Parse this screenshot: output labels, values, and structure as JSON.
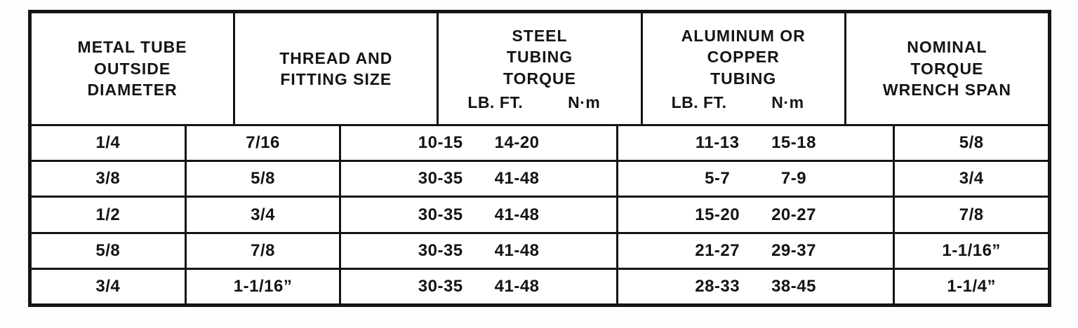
{
  "colors": {
    "background": "#ffffff",
    "border": "#141414",
    "text": "#141414"
  },
  "headers": [
    {
      "title": "METAL TUBE\nOUTSIDE\nDIAMETER"
    },
    {
      "title": "THREAD AND\nFITTING SIZE"
    },
    {
      "title": "STEEL\nTUBING\nTORQUE",
      "units": [
        "LB. FT.",
        "N·m"
      ]
    },
    {
      "title": "ALUMINUM OR\nCOPPER\nTUBING",
      "units": [
        "LB. FT.",
        "N·m"
      ]
    },
    {
      "title": "NOMINAL\nTORQUE\nWRENCH SPAN"
    }
  ],
  "chart_data": {
    "type": "table",
    "columns": [
      "METAL TUBE OUTSIDE DIAMETER",
      "THREAD AND FITTING SIZE",
      "STEEL TUBING TORQUE LB. FT.",
      "STEEL TUBING TORQUE N·m",
      "ALUMINUM OR COPPER TUBING LB. FT.",
      "ALUMINUM OR COPPER TUBING N·m",
      "NOMINAL TORQUE WRENCH SPAN"
    ],
    "rows": [
      [
        "1/4",
        "7/16",
        "10-15",
        "14-20",
        "11-13",
        "15-18",
        "5/8"
      ],
      [
        "3/8",
        "5/8",
        "30-35",
        "41-48",
        "5-7",
        "7-9",
        "3/4"
      ],
      [
        "1/2",
        "3/4",
        "30-35",
        "41-48",
        "15-20",
        "20-27",
        "7/8"
      ],
      [
        "5/8",
        "7/8",
        "30-35",
        "41-48",
        "21-27",
        "29-37",
        "1-1/16”"
      ],
      [
        "3/4",
        "1-1/16”",
        "30-35",
        "41-48",
        "28-33",
        "38-45",
        "1-1/4”"
      ]
    ]
  }
}
